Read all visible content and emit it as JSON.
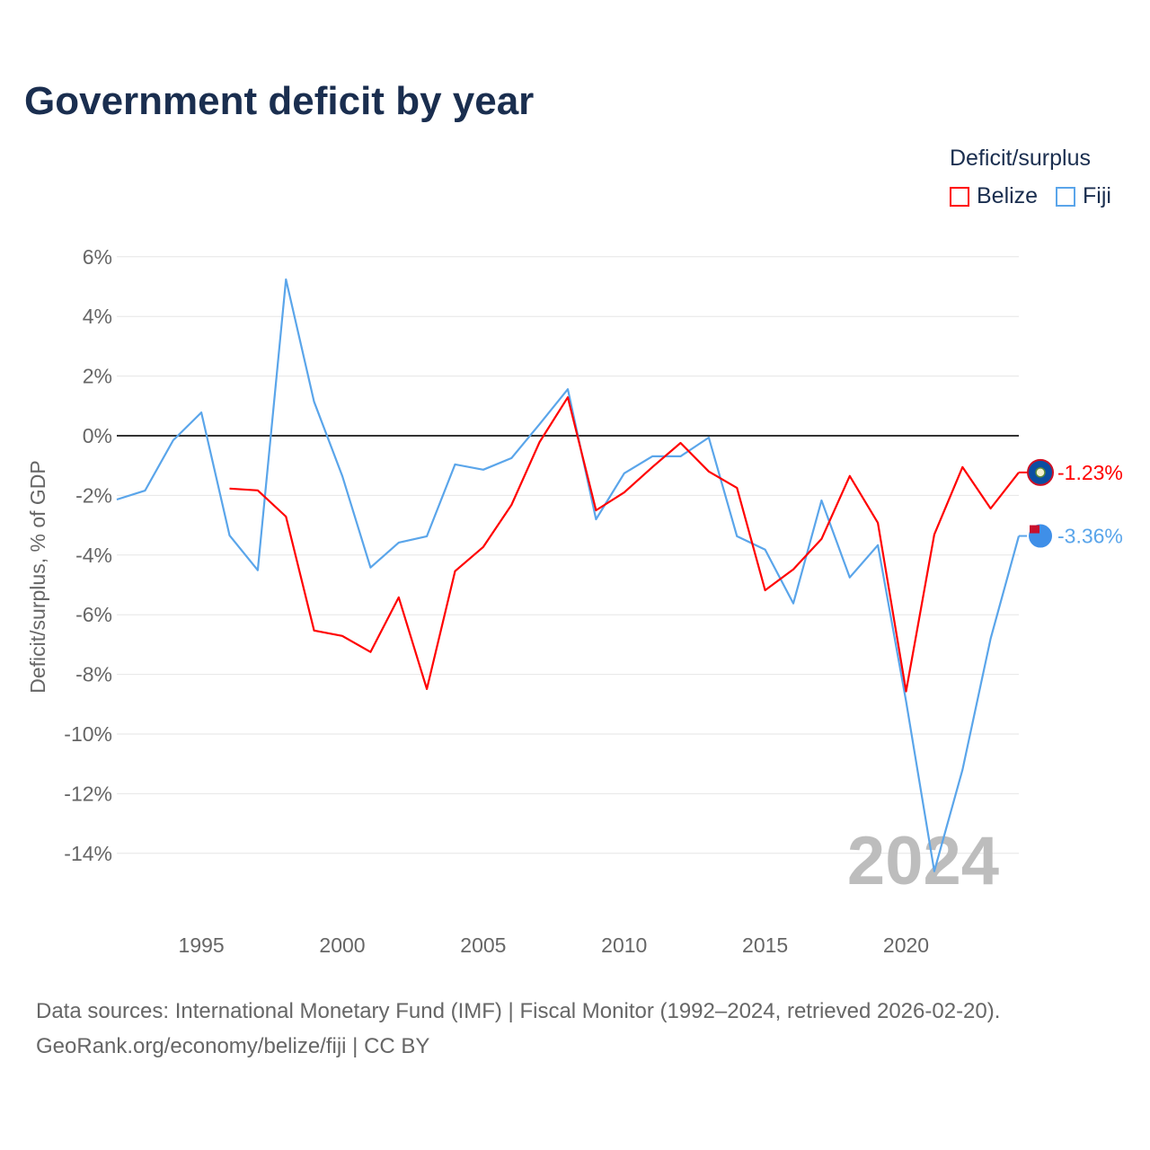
{
  "chart_data": {
    "type": "line",
    "title": "Government deficit by year",
    "ylabel": "Deficit/surplus, % of GDP",
    "xlabel": "",
    "xlim": [
      1992,
      2024
    ],
    "ylim": [
      -16,
      6
    ],
    "yticks": [
      6,
      4,
      2,
      0,
      -2,
      -4,
      -6,
      -8,
      -10,
      -12,
      -14
    ],
    "ytick_labels": [
      "6%",
      "4%",
      "2%",
      "0%",
      "-2%",
      "-4%",
      "-6%",
      "-8%",
      "-10%",
      "-12%",
      "-14%"
    ],
    "xticks": [
      1995,
      2000,
      2005,
      2010,
      2015,
      2020
    ],
    "xtick_labels": [
      "1995",
      "2000",
      "2005",
      "2010",
      "2015",
      "2020"
    ],
    "grid": true,
    "legend_title": "Deficit/surplus",
    "legend_position": "top-right",
    "watermark_year": "2024",
    "series": [
      {
        "name": "Belize",
        "color": "#ff0000",
        "end_label": "-1.23%",
        "x": [
          1996,
          1997,
          1998,
          1999,
          2000,
          2001,
          2002,
          2003,
          2004,
          2005,
          2006,
          2007,
          2008,
          2009,
          2010,
          2011,
          2012,
          2013,
          2014,
          2015,
          2016,
          2017,
          2018,
          2019,
          2020,
          2021,
          2022,
          2023,
          2024
        ],
        "values": [
          -1.77,
          -1.83,
          -2.71,
          -6.53,
          -6.71,
          -7.25,
          -5.42,
          -8.49,
          -4.54,
          -3.73,
          -2.32,
          -0.21,
          1.29,
          -2.5,
          -1.9,
          -1.05,
          -0.24,
          -1.2,
          -1.75,
          -5.18,
          -4.48,
          -3.46,
          -1.35,
          -2.92,
          -8.57,
          -3.31,
          -1.05,
          -2.44,
          -1.23
        ]
      },
      {
        "name": "Fiji",
        "color": "#5aa5ea",
        "end_label": "-3.36%",
        "x": [
          1992,
          1993,
          1994,
          1995,
          1996,
          1997,
          1998,
          1999,
          2000,
          2001,
          2002,
          2003,
          2004,
          2005,
          2006,
          2007,
          2008,
          2009,
          2010,
          2011,
          2012,
          2013,
          2014,
          2015,
          2016,
          2017,
          2018,
          2019,
          2020,
          2021,
          2022,
          2023,
          2024
        ],
        "values": [
          -2.14,
          -1.84,
          -0.15,
          0.78,
          -3.34,
          -4.51,
          5.24,
          1.14,
          -1.35,
          -4.42,
          -3.58,
          -3.37,
          -0.96,
          -1.14,
          -0.75,
          0.39,
          1.56,
          -2.8,
          -1.26,
          -0.69,
          -0.69,
          -0.06,
          -3.37,
          -3.82,
          -5.62,
          -2.17,
          -4.75,
          -3.67,
          -8.9,
          -14.6,
          -11.2,
          -6.8,
          -3.36
        ]
      }
    ]
  },
  "footer": {
    "line1": "Data sources: International Monetary Fund (IMF) | Fiscal Monitor (1992–2024, retrieved 2026-02-20).",
    "line2": "GeoRank.org/economy/belize/fiji | CC BY"
  }
}
